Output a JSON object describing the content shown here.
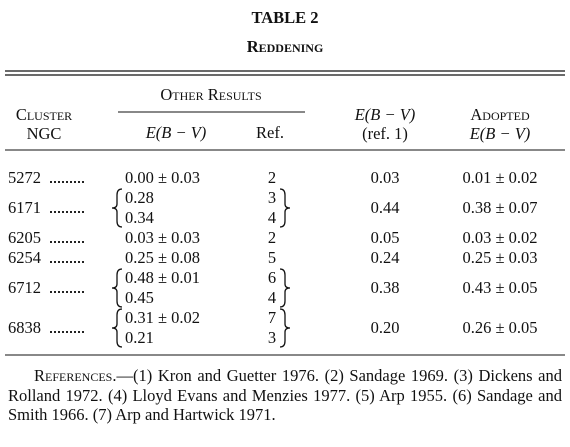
{
  "header": {
    "title": "TABLE 2",
    "subtitle": "Reddening"
  },
  "table": {
    "columns": {
      "cluster": [
        "Cluster",
        "NGC"
      ],
      "other_results": "Other Results",
      "other_value": "E(B − V)",
      "other_ref": "Ref.",
      "ref1": [
        "E(B − V)",
        "(ref. 1)"
      ],
      "adopted": [
        "Adopted",
        "E(B − V)"
      ]
    },
    "rows": [
      {
        "cluster": "5272",
        "other": [
          {
            "value": "0.00 ± 0.03",
            "ref": "2"
          }
        ],
        "ref1": "0.03",
        "adopted": "0.01 ± 0.02"
      },
      {
        "cluster": "6171",
        "other": [
          {
            "value": "0.28",
            "ref": "3"
          },
          {
            "value": "0.34",
            "ref": "4"
          }
        ],
        "ref1": "0.44",
        "adopted": "0.38 ± 0.07"
      },
      {
        "cluster": "6205",
        "other": [
          {
            "value": "0.03 ± 0.03",
            "ref": "2"
          }
        ],
        "ref1": "0.05",
        "adopted": "0.03 ± 0.02"
      },
      {
        "cluster": "6254",
        "other": [
          {
            "value": "0.25 ± 0.08",
            "ref": "5"
          }
        ],
        "ref1": "0.24",
        "adopted": "0.25 ± 0.03"
      },
      {
        "cluster": "6712",
        "other": [
          {
            "value": "0.48 ± 0.01",
            "ref": "6"
          },
          {
            "value": "0.45",
            "ref": "4"
          }
        ],
        "ref1": "0.38",
        "adopted": "0.43 ± 0.05"
      },
      {
        "cluster": "6838",
        "other": [
          {
            "value": "0.31 ± 0.02",
            "ref": "7"
          },
          {
            "value": "0.21",
            "ref": "3"
          }
        ],
        "ref1": "0.20",
        "adopted": "0.26 ± 0.05"
      }
    ]
  },
  "footnote": {
    "label": "References",
    "text": ".—(1) Kron and Guetter 1976. (2) Sandage 1969. (3) Dickens and Rolland 1972. (4) Lloyd Evans and Menzies 1977. (5) Arp 1955. (6) Sandage and Smith 1966. (7) Arp and Hartwick 1971."
  }
}
